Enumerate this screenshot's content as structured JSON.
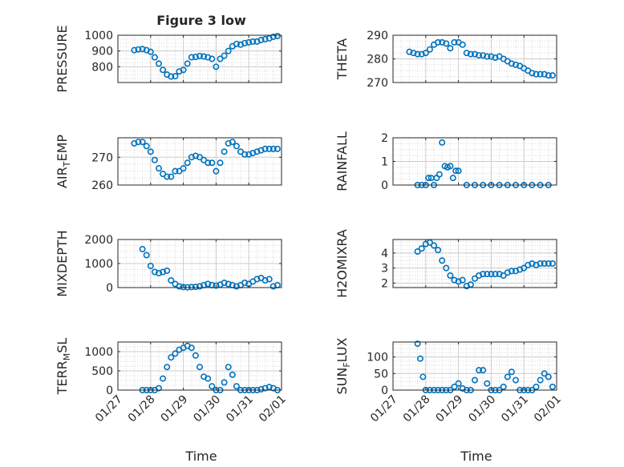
{
  "figure": {
    "title": "Figure 3 low",
    "marker_color": "#0072bd",
    "axis_color": "#262626",
    "grid_color": "#d9d9d9"
  },
  "x_axis": {
    "ticks": [
      "01/27",
      "01/28",
      "01/29",
      "01/30",
      "01/31",
      "02/01"
    ],
    "label": "Time"
  },
  "chart_data": [
    {
      "type": "scatter",
      "id": "pressure",
      "title": "Figure 3 low",
      "ylabel": "PRESSURE",
      "ylim": [
        700,
        1000
      ],
      "yticks": [
        800,
        900,
        1000
      ],
      "grid": true,
      "x": [
        "01/27 12:00",
        "01/27 15:00",
        "01/27 18:00",
        "01/27 21:00",
        "01/28 00:00",
        "01/28 03:00",
        "01/28 06:00",
        "01/28 09:00",
        "01/28 12:00",
        "01/28 15:00",
        "01/28 18:00",
        "01/28 21:00",
        "01/29 00:00",
        "01/29 03:00",
        "01/29 06:00",
        "01/29 09:00",
        "01/29 12:00",
        "01/29 15:00",
        "01/29 18:00",
        "01/29 21:00",
        "01/30 00:00",
        "01/30 03:00",
        "01/30 06:00",
        "01/30 09:00",
        "01/30 12:00",
        "01/30 15:00",
        "01/30 18:00",
        "01/30 21:00",
        "01/31 00:00",
        "01/31 03:00",
        "01/31 06:00",
        "01/31 09:00",
        "01/31 12:00",
        "01/31 15:00",
        "01/31 18:00",
        "01/31 21:00"
      ],
      "y": [
        905,
        910,
        912,
        905,
        895,
        860,
        820,
        780,
        750,
        738,
        740,
        770,
        780,
        820,
        860,
        862,
        868,
        865,
        860,
        850,
        800,
        850,
        870,
        900,
        930,
        945,
        940,
        950,
        955,
        960,
        960,
        970,
        975,
        980,
        990,
        995
      ]
    },
    {
      "type": "scatter",
      "id": "theta",
      "ylabel": "THETA",
      "ylim": [
        270,
        290
      ],
      "yticks": [
        270,
        280,
        290
      ],
      "grid": true,
      "x": [
        "01/27 12:00",
        "01/27 15:00",
        "01/27 18:00",
        "01/27 21:00",
        "01/28 00:00",
        "01/28 03:00",
        "01/28 06:00",
        "01/28 09:00",
        "01/28 12:00",
        "01/28 15:00",
        "01/28 18:00",
        "01/28 21:00",
        "01/29 00:00",
        "01/29 03:00",
        "01/29 06:00",
        "01/29 09:00",
        "01/29 12:00",
        "01/29 15:00",
        "01/29 18:00",
        "01/29 21:00",
        "01/30 00:00",
        "01/30 03:00",
        "01/30 06:00",
        "01/30 09:00",
        "01/30 12:00",
        "01/30 15:00",
        "01/30 18:00",
        "01/30 21:00",
        "01/31 00:00",
        "01/31 03:00",
        "01/31 06:00",
        "01/31 09:00",
        "01/31 12:00",
        "01/31 15:00",
        "01/31 18:00",
        "01/31 21:00"
      ],
      "y": [
        283,
        282.5,
        282,
        282,
        282.5,
        284,
        286,
        287,
        287,
        286.5,
        284.5,
        287,
        287,
        286,
        282.5,
        282,
        282,
        281.5,
        281.5,
        281,
        281,
        280.5,
        281,
        280,
        279,
        278,
        277.5,
        277,
        276,
        275,
        274,
        273.5,
        273.5,
        273.5,
        273,
        273
      ]
    },
    {
      "type": "scatter",
      "id": "air_temp",
      "ylabel": "AIR_TEMP",
      "ylim": [
        260,
        277
      ],
      "yticks": [
        260,
        270
      ],
      "grid": true,
      "x": [
        "01/27 12:00",
        "01/27 15:00",
        "01/27 18:00",
        "01/27 21:00",
        "01/28 00:00",
        "01/28 03:00",
        "01/28 06:00",
        "01/28 09:00",
        "01/28 12:00",
        "01/28 15:00",
        "01/28 18:00",
        "01/28 21:00",
        "01/29 00:00",
        "01/29 03:00",
        "01/29 06:00",
        "01/29 09:00",
        "01/29 12:00",
        "01/29 15:00",
        "01/29 18:00",
        "01/29 21:00",
        "01/30 00:00",
        "01/30 03:00",
        "01/30 06:00",
        "01/30 09:00",
        "01/30 12:00",
        "01/30 15:00",
        "01/30 18:00",
        "01/30 21:00",
        "01/31 00:00",
        "01/31 03:00",
        "01/31 06:00",
        "01/31 09:00",
        "01/31 12:00",
        "01/31 15:00",
        "01/31 18:00",
        "01/31 21:00"
      ],
      "y": [
        275,
        275.5,
        275.5,
        274,
        272,
        269,
        266,
        264,
        263,
        263,
        265,
        265,
        266,
        268,
        270,
        270.5,
        270,
        269,
        268,
        268,
        265,
        268,
        272,
        275,
        275.5,
        274,
        272,
        271,
        271,
        271.5,
        272,
        272.5,
        273,
        273,
        273,
        273
      ]
    },
    {
      "type": "scatter",
      "id": "rainfall",
      "ylabel": "RAINFALL",
      "ylim": [
        0,
        2
      ],
      "yticks": [
        0,
        1,
        2
      ],
      "grid": true,
      "x": [
        "01/27 18:00",
        "01/27 21:00",
        "01/28 00:00",
        "01/28 02:00",
        "01/28 04:00",
        "01/28 06:00",
        "01/28 08:00",
        "01/28 10:00",
        "01/28 12:00",
        "01/28 14:00",
        "01/28 16:00",
        "01/28 18:00",
        "01/28 20:00",
        "01/28 22:00",
        "01/29 00:00",
        "01/29 06:00",
        "01/29 12:00",
        "01/29 18:00",
        "01/30 00:00",
        "01/30 06:00",
        "01/30 12:00",
        "01/30 18:00",
        "01/31 00:00",
        "01/31 06:00",
        "01/31 12:00",
        "01/31 18:00"
      ],
      "y": [
        0,
        0,
        0,
        0.3,
        0.3,
        0,
        0.3,
        0.45,
        1.8,
        0.8,
        0.75,
        0.8,
        0.3,
        0.6,
        0.6,
        0,
        0,
        0,
        0,
        0,
        0,
        0,
        0,
        0,
        0,
        0
      ]
    },
    {
      "type": "scatter",
      "id": "mixdepth",
      "ylabel": "MIXDEPTH",
      "ylim": [
        0,
        2000
      ],
      "yticks": [
        0,
        1000,
        2000
      ],
      "grid": true,
      "x": [
        "01/27 18:00",
        "01/27 21:00",
        "01/28 00:00",
        "01/28 03:00",
        "01/28 06:00",
        "01/28 09:00",
        "01/28 12:00",
        "01/28 15:00",
        "01/28 18:00",
        "01/28 21:00",
        "01/29 00:00",
        "01/29 03:00",
        "01/29 06:00",
        "01/29 09:00",
        "01/29 12:00",
        "01/29 15:00",
        "01/29 18:00",
        "01/29 21:00",
        "01/30 00:00",
        "01/30 03:00",
        "01/30 06:00",
        "01/30 09:00",
        "01/30 12:00",
        "01/30 15:00",
        "01/30 18:00",
        "01/30 21:00",
        "01/31 00:00",
        "01/31 03:00",
        "01/31 06:00",
        "01/31 09:00",
        "01/31 12:00",
        "01/31 15:00",
        "01/31 18:00",
        "01/31 21:00"
      ],
      "y": [
        1600,
        1350,
        900,
        650,
        600,
        650,
        700,
        300,
        150,
        50,
        20,
        10,
        20,
        30,
        50,
        100,
        150,
        100,
        80,
        120,
        200,
        150,
        100,
        50,
        100,
        200,
        150,
        250,
        350,
        400,
        300,
        350,
        50,
        100
      ]
    },
    {
      "type": "scatter",
      "id": "h2omixra",
      "ylabel": "H2OMIXRA",
      "ylim": [
        1.7,
        4.9
      ],
      "yticks": [
        2,
        3,
        4
      ],
      "grid": true,
      "x": [
        "01/27 18:00",
        "01/27 21:00",
        "01/28 00:00",
        "01/28 03:00",
        "01/28 06:00",
        "01/28 09:00",
        "01/28 12:00",
        "01/28 15:00",
        "01/28 18:00",
        "01/28 21:00",
        "01/29 00:00",
        "01/29 03:00",
        "01/29 06:00",
        "01/29 09:00",
        "01/29 12:00",
        "01/29 15:00",
        "01/29 18:00",
        "01/29 21:00",
        "01/30 00:00",
        "01/30 03:00",
        "01/30 06:00",
        "01/30 09:00",
        "01/30 12:00",
        "01/30 15:00",
        "01/30 18:00",
        "01/30 21:00",
        "01/31 00:00",
        "01/31 03:00",
        "01/31 06:00",
        "01/31 09:00",
        "01/31 12:00",
        "01/31 15:00",
        "01/31 18:00",
        "01/31 21:00"
      ],
      "y": [
        4.1,
        4.3,
        4.6,
        4.7,
        4.5,
        4.2,
        3.5,
        3.0,
        2.5,
        2.2,
        2.1,
        2.2,
        1.8,
        1.9,
        2.3,
        2.5,
        2.6,
        2.6,
        2.6,
        2.6,
        2.6,
        2.5,
        2.7,
        2.8,
        2.8,
        2.9,
        3.0,
        3.2,
        3.3,
        3.2,
        3.3,
        3.3,
        3.3,
        3.3
      ]
    },
    {
      "type": "scatter",
      "id": "terr_msl",
      "ylabel": "TERR_MSL",
      "ylim": [
        0,
        1250
      ],
      "yticks": [
        0,
        500,
        1000
      ],
      "grid": true,
      "x": [
        "01/27 18:00",
        "01/27 21:00",
        "01/28 00:00",
        "01/28 03:00",
        "01/28 06:00",
        "01/28 09:00",
        "01/28 12:00",
        "01/28 15:00",
        "01/28 18:00",
        "01/28 21:00",
        "01/29 00:00",
        "01/29 03:00",
        "01/29 06:00",
        "01/29 09:00",
        "01/29 12:00",
        "01/29 15:00",
        "01/29 18:00",
        "01/29 21:00",
        "01/30 00:00",
        "01/30 03:00",
        "01/30 06:00",
        "01/30 09:00",
        "01/30 12:00",
        "01/30 15:00",
        "01/30 18:00",
        "01/30 21:00",
        "01/31 00:00",
        "01/31 03:00",
        "01/31 06:00",
        "01/31 09:00",
        "01/31 12:00",
        "01/31 15:00",
        "01/31 18:00",
        "01/31 21:00"
      ],
      "y": [
        0,
        0,
        0,
        0,
        50,
        300,
        600,
        850,
        950,
        1050,
        1100,
        1150,
        1100,
        900,
        600,
        350,
        300,
        100,
        0,
        0,
        200,
        600,
        400,
        100,
        0,
        0,
        0,
        0,
        0,
        20,
        50,
        80,
        50,
        0
      ]
    },
    {
      "type": "scatter",
      "id": "sun_flux",
      "ylabel": "SUN_FLUX",
      "ylim": [
        0,
        145
      ],
      "yticks": [
        0,
        50,
        100
      ],
      "grid": true,
      "x": [
        "01/27 18:00",
        "01/27 20:00",
        "01/27 22:00",
        "01/28 00:00",
        "01/28 03:00",
        "01/28 06:00",
        "01/28 09:00",
        "01/28 12:00",
        "01/28 15:00",
        "01/28 18:00",
        "01/28 21:00",
        "01/29 00:00",
        "01/29 03:00",
        "01/29 06:00",
        "01/29 09:00",
        "01/29 12:00",
        "01/29 15:00",
        "01/29 18:00",
        "01/29 21:00",
        "01/30 00:00",
        "01/30 03:00",
        "01/30 06:00",
        "01/30 09:00",
        "01/30 12:00",
        "01/30 15:00",
        "01/30 18:00",
        "01/30 21:00",
        "01/31 00:00",
        "01/31 03:00",
        "01/31 06:00",
        "01/31 09:00",
        "01/31 12:00",
        "01/31 15:00",
        "01/31 18:00",
        "01/31 21:00"
      ],
      "y": [
        140,
        95,
        40,
        0,
        0,
        0,
        0,
        0,
        0,
        0,
        10,
        20,
        5,
        0,
        0,
        30,
        60,
        60,
        20,
        0,
        0,
        0,
        10,
        40,
        55,
        30,
        0,
        0,
        0,
        0,
        10,
        30,
        50,
        40,
        10
      ]
    }
  ]
}
